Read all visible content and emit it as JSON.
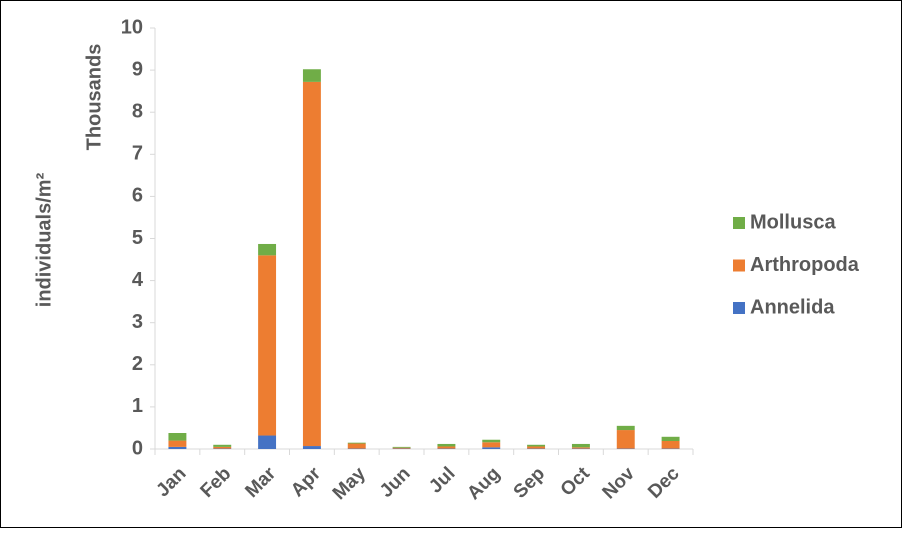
{
  "chart_data": {
    "type": "bar",
    "stacked": true,
    "ylabel": "individuals/m²",
    "ylabel_scale": "Thousands",
    "categories": [
      "Jan",
      "Feb",
      "Mar",
      "Apr",
      "May",
      "Jun",
      "Jul",
      "Aug",
      "Sep",
      "Oct",
      "Nov",
      "Dec"
    ],
    "series": [
      {
        "name": "Annelida",
        "color": "#4472c4",
        "values": [
          0.05,
          0.01,
          0.32,
          0.07,
          0.01,
          0.01,
          0.01,
          0.04,
          0.01,
          0.01,
          0.01,
          0.01
        ]
      },
      {
        "name": "Arthropoda",
        "color": "#ed7d31",
        "values": [
          0.15,
          0.04,
          4.28,
          8.65,
          0.12,
          0.02,
          0.05,
          0.12,
          0.05,
          0.03,
          0.44,
          0.18
        ]
      },
      {
        "name": "Mollusca",
        "color": "#70ad47",
        "values": [
          0.18,
          0.05,
          0.27,
          0.3,
          0.02,
          0.02,
          0.06,
          0.06,
          0.04,
          0.08,
          0.1,
          0.1
        ]
      }
    ],
    "ylim": [
      0,
      10
    ],
    "yticks": [
      0,
      1,
      2,
      3,
      4,
      5,
      6,
      7,
      8,
      9,
      10
    ],
    "grid": false,
    "legend": "right"
  }
}
